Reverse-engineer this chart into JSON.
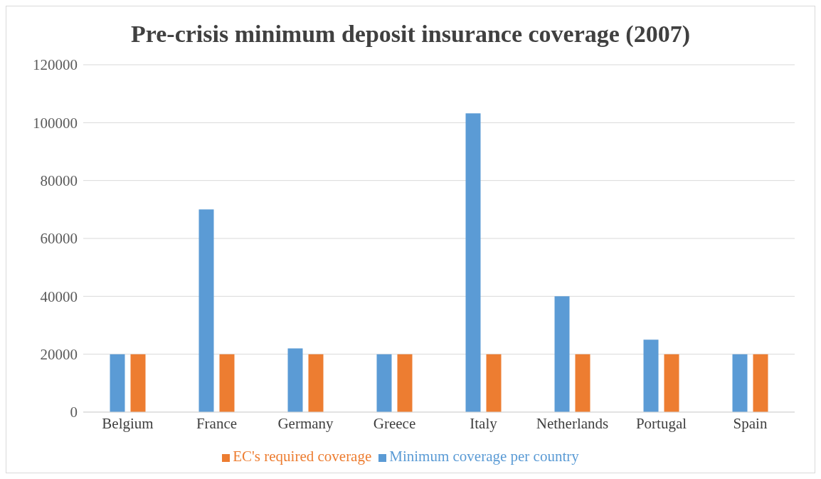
{
  "chart_data": {
    "type": "bar",
    "title": "Pre-crisis minimum deposit insurance coverage (2007)",
    "categories": [
      "Belgium",
      "France",
      "Germany",
      "Greece",
      "Italy",
      "Netherlands",
      "Portugal",
      "Spain"
    ],
    "series": [
      {
        "name": "Minimum coverage per country",
        "color": "#5b9bd5",
        "values": [
          20000,
          70000,
          22000,
          20000,
          103200,
          40000,
          25000,
          20000
        ]
      },
      {
        "name": "EC's required coverage",
        "color": "#ed7d31",
        "values": [
          20000,
          20000,
          20000,
          20000,
          20000,
          20000,
          20000,
          20000
        ]
      }
    ],
    "ylim": [
      0,
      120000
    ],
    "yticks": [
      0,
      20000,
      40000,
      60000,
      80000,
      100000,
      120000
    ],
    "grid": "y",
    "legend": "bottom"
  }
}
